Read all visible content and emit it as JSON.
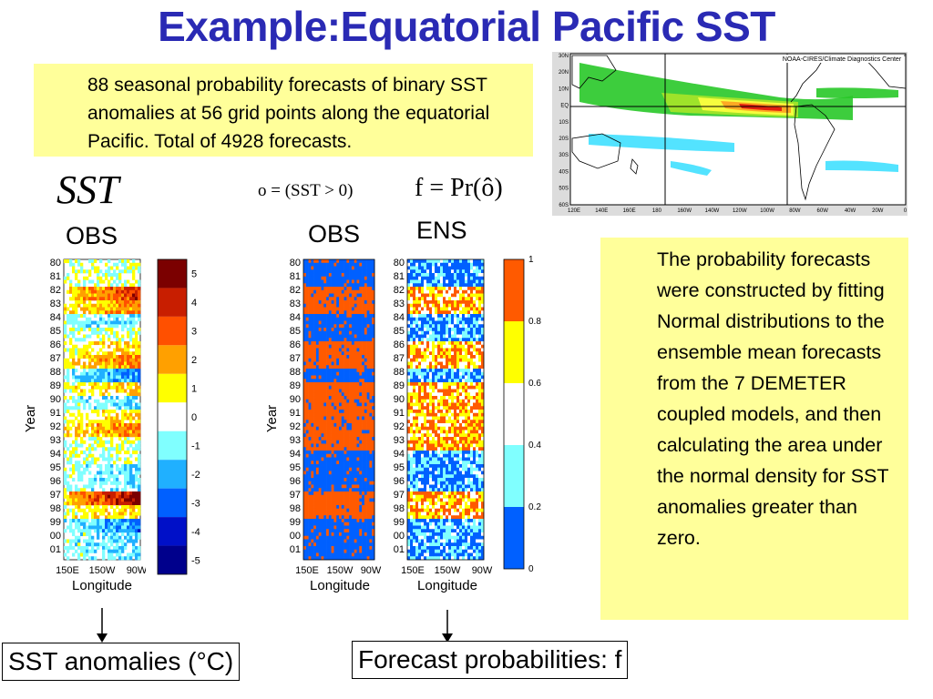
{
  "title": "Example:Equatorial Pacific SST",
  "top_note": "88 seasonal probability forecasts of binary SST anomalies at 56 grid points along the equatorial Pacific. Total of 4928 forecasts.",
  "right_note": "The probability forecasts were constructed by fitting Normal distributions to the ensemble mean forecasts from the 7 DEMETER coupled models, and then calculating the area under the normal density for SST anomalies greater than zero.",
  "symbol_sst": "SST",
  "eq_obs": "o = (SST > 0)",
  "eq_f": "f = Pr(ô)",
  "panel_labels": {
    "obs1": "OBS",
    "obs2": "OBS",
    "ens": "ENS"
  },
  "axis": {
    "ylabel": "Year",
    "xlabel": "Longitude",
    "years": [
      "80",
      "81",
      "82",
      "83",
      "84",
      "85",
      "86",
      "87",
      "88",
      "89",
      "90",
      "91",
      "92",
      "93",
      "94",
      "95",
      "96",
      "97",
      "98",
      "99",
      "00",
      "01"
    ],
    "lon_ticks": [
      "150E",
      "150W",
      "90W"
    ]
  },
  "colorbar_anom": {
    "ticks": [
      "5",
      "4",
      "3",
      "2",
      "1",
      "0",
      "-1",
      "-2",
      "-3",
      "-4",
      "-5"
    ],
    "colors": [
      "#7b0000",
      "#c81e00",
      "#ff5000",
      "#ffa000",
      "#ffff00",
      "#ffffff",
      "#80ffff",
      "#20b0ff",
      "#0060ff",
      "#0010c8",
      "#00008c"
    ]
  },
  "colorbar_prob": {
    "ticks": [
      "1",
      "0.8",
      "0.6",
      "0.4",
      "0.2",
      "0"
    ],
    "colors": [
      "#ff5a00",
      "#ffff00",
      "#ffffff",
      "#80ffff",
      "#0060ff"
    ]
  },
  "map": {
    "credit": "NOAA-CIRES/Climate Diagnostics Center",
    "lat_ticks": [
      "30N",
      "20N",
      "10N",
      "EQ",
      "10S",
      "20S",
      "30S",
      "40S",
      "50S",
      "60S"
    ],
    "lon_ticks": [
      "120E",
      "140E",
      "160E",
      "180",
      "160W",
      "140W",
      "120W",
      "100W",
      "80W",
      "60W",
      "40W",
      "20W",
      "0"
    ]
  },
  "bottom_labels": {
    "left": "SST anomalies (°C)",
    "right": "Forecast probabilities: f"
  },
  "colors": {
    "title": "#2a2ab4",
    "note_bg": "#ffff9a"
  }
}
